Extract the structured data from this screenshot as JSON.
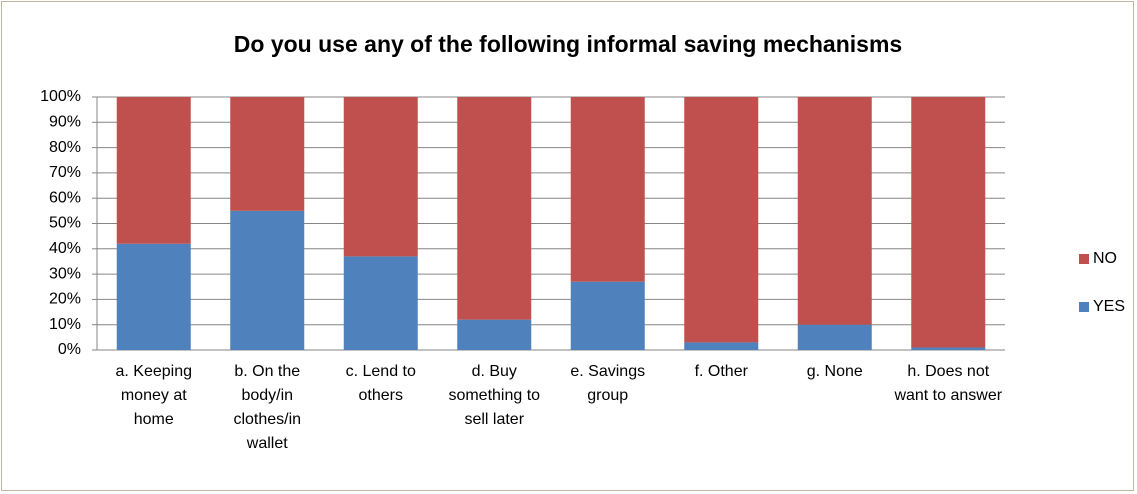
{
  "chart_data": {
    "type": "stacked_bar_100",
    "title": "Do you use any of the following informal saving mechanisms",
    "categories": [
      "a. Keeping money at home",
      "b. On the body/in clothes/in wallet",
      "c. Lend to others",
      "d. Buy something to sell later",
      "e. Savings group",
      "f. Other",
      "g. None",
      "h. Does not want to answer"
    ],
    "series": [
      {
        "name": "YES",
        "color": "#4f81bd",
        "values": [
          42,
          55,
          37,
          12,
          27,
          3,
          10,
          1
        ]
      },
      {
        "name": "NO",
        "color": "#c0504d",
        "values": [
          58,
          45,
          63,
          88,
          73,
          97,
          90,
          99
        ]
      }
    ],
    "ylim": [
      0,
      100
    ],
    "yticks": [
      {
        "value": 0,
        "label": "0%"
      },
      {
        "value": 10,
        "label": "10%"
      },
      {
        "value": 20,
        "label": "20%"
      },
      {
        "value": 30,
        "label": "30%"
      },
      {
        "value": 40,
        "label": "40%"
      },
      {
        "value": 50,
        "label": "50%"
      },
      {
        "value": 60,
        "label": "60%"
      },
      {
        "value": 70,
        "label": "70%"
      },
      {
        "value": 80,
        "label": "80%"
      },
      {
        "value": 90,
        "label": "90%"
      },
      {
        "value": 100,
        "label": "100%"
      }
    ],
    "grid": true,
    "legend": "right"
  }
}
